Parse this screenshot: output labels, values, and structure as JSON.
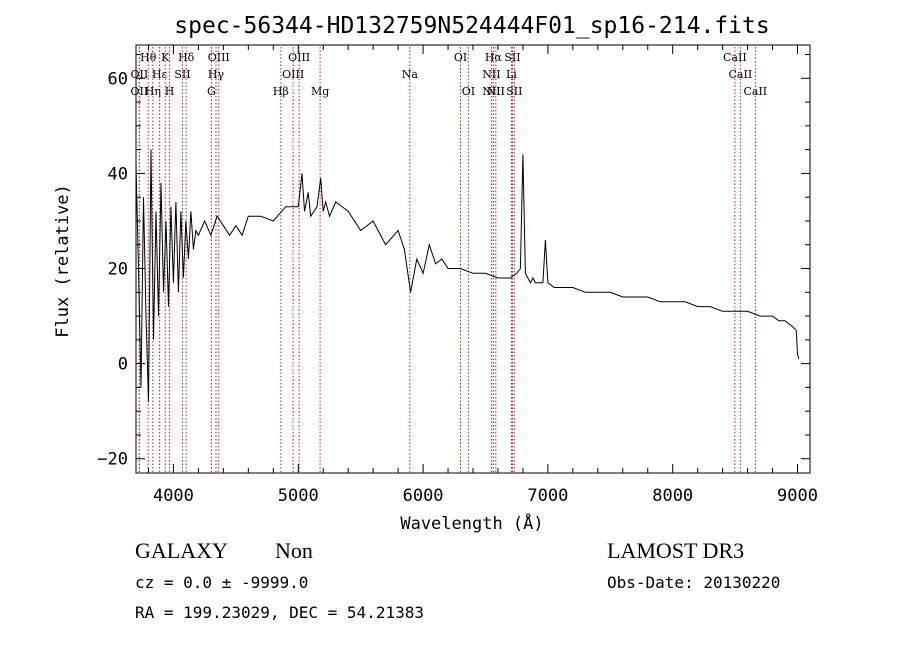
{
  "chart_data": {
    "type": "line",
    "title": "spec-56344-HD132759N524444F01_sp16-214.fits",
    "xlabel": "Wavelength (Å)",
    "ylabel": "Flux (relative)",
    "xlim": [
      3700,
      9100
    ],
    "ylim": [
      -23,
      67
    ],
    "xticks": [
      4000,
      5000,
      6000,
      7000,
      8000,
      9000
    ],
    "yticks": [
      -20,
      0,
      20,
      40,
      60
    ],
    "x_minor_step": 200,
    "y_minor_step": 5,
    "line_color": "#000000",
    "marker_color": "#b22222",
    "series": [
      {
        "name": "flux",
        "x": [
          3700,
          3720,
          3740,
          3760,
          3780,
          3800,
          3820,
          3840,
          3860,
          3880,
          3900,
          3920,
          3940,
          3960,
          3980,
          4000,
          4020,
          4040,
          4060,
          4080,
          4100,
          4120,
          4140,
          4160,
          4180,
          4200,
          4250,
          4300,
          4350,
          4400,
          4450,
          4500,
          4550,
          4600,
          4700,
          4800,
          4900,
          5000,
          5030,
          5050,
          5080,
          5100,
          5150,
          5180,
          5200,
          5220,
          5250,
          5300,
          5400,
          5500,
          5600,
          5700,
          5800,
          5850,
          5900,
          5950,
          6000,
          6050,
          6100,
          6150,
          6200,
          6300,
          6400,
          6500,
          6600,
          6700,
          6750,
          6780,
          6800,
          6820,
          6840,
          6860,
          6880,
          6900,
          6940,
          6960,
          6980,
          7000,
          7050,
          7100,
          7200,
          7300,
          7400,
          7500,
          7600,
          7700,
          7800,
          7900,
          8000,
          8100,
          8200,
          8300,
          8400,
          8500,
          8600,
          8700,
          8800,
          8850,
          8900,
          8950,
          8990,
          9000,
          9010
        ],
        "y": [
          42,
          20,
          -5,
          35,
          10,
          -8,
          45,
          5,
          32,
          10,
          38,
          15,
          30,
          12,
          33,
          17,
          34,
          15,
          32,
          18,
          30,
          22,
          32,
          24,
          28,
          27,
          30,
          27,
          31,
          29,
          27,
          29,
          27,
          31,
          31,
          30,
          33,
          33,
          40,
          32,
          36,
          31,
          33,
          39,
          32,
          34,
          31,
          34,
          32,
          28,
          30,
          25,
          28,
          24,
          15,
          22,
          19,
          25,
          21,
          22,
          20,
          20,
          19,
          19,
          18,
          18,
          19,
          20,
          44,
          19,
          18,
          17,
          18,
          17,
          17,
          17,
          26,
          17,
          16,
          16,
          16,
          15,
          15,
          15,
          14,
          14,
          14,
          13,
          13,
          13,
          12,
          12,
          11,
          11,
          11,
          10,
          10,
          9,
          9,
          8,
          7,
          2,
          1
        ]
      }
    ],
    "features": [
      {
        "name": "OII",
        "wavelength": 3727,
        "tier": "bottom"
      },
      {
        "name": "OII",
        "wavelength": 3727,
        "tier": "mid"
      },
      {
        "name": "Hθ",
        "wavelength": 3798,
        "tier": "top"
      },
      {
        "name": "Hη",
        "wavelength": 3835,
        "tier": "bottom"
      },
      {
        "name": "Hε",
        "wavelength": 3889,
        "tier": "mid"
      },
      {
        "name": "K",
        "wavelength": 3934,
        "tier": "top"
      },
      {
        "name": "H",
        "wavelength": 3969,
        "tier": "bottom"
      },
      {
        "name": "SII",
        "wavelength": 4072,
        "tier": "mid"
      },
      {
        "name": "Hδ",
        "wavelength": 4102,
        "tier": "top"
      },
      {
        "name": "G",
        "wavelength": 4304,
        "tier": "bottom"
      },
      {
        "name": "Hγ",
        "wavelength": 4341,
        "tier": "mid"
      },
      {
        "name": "OIII",
        "wavelength": 4363,
        "tier": "top"
      },
      {
        "name": "Hβ",
        "wavelength": 4861,
        "tier": "bottom"
      },
      {
        "name": "OIII",
        "wavelength": 4959,
        "tier": "mid"
      },
      {
        "name": "OIII",
        "wavelength": 5007,
        "tier": "top"
      },
      {
        "name": "Mg",
        "wavelength": 5175,
        "tier": "bottom"
      },
      {
        "name": "Na",
        "wavelength": 5894,
        "tier": "mid"
      },
      {
        "name": "OI",
        "wavelength": 6300,
        "tier": "top"
      },
      {
        "name": "OI",
        "wavelength": 6363,
        "tier": "bottom"
      },
      {
        "name": "NII",
        "wavelength": 6548,
        "tier": "bottom"
      },
      {
        "name": "NII",
        "wavelength": 6548,
        "tier": "mid"
      },
      {
        "name": "Hα",
        "wavelength": 6563,
        "tier": "top"
      },
      {
        "name": "NII",
        "wavelength": 6583,
        "tier": "bottom"
      },
      {
        "name": "SII",
        "wavelength": 6716,
        "tier": "top"
      },
      {
        "name": "Li",
        "wavelength": 6708,
        "tier": "mid"
      },
      {
        "name": "SII",
        "wavelength": 6731,
        "tier": "bottom"
      },
      {
        "name": "CaII",
        "wavelength": 8498,
        "tier": "top"
      },
      {
        "name": "CaII",
        "wavelength": 8542,
        "tier": "mid"
      },
      {
        "name": "CaII",
        "wavelength": 8662,
        "tier": "bottom"
      }
    ]
  },
  "info": {
    "object_class": "GALAXY",
    "object_subclass": "Non",
    "survey": "LAMOST DR3",
    "cz_line": "cz = 0.0 ± -9999.0",
    "obs_date": "Obs-Date: 20130220",
    "radec": "RA = 199.23029, DEC =  54.21383"
  }
}
